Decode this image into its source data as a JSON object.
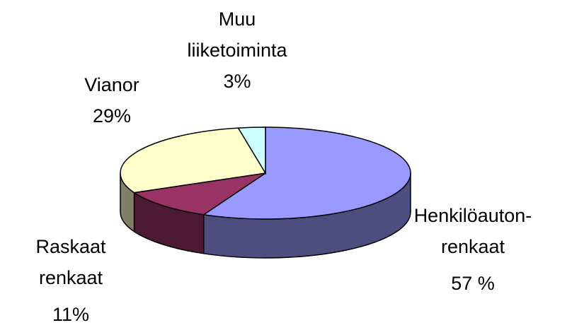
{
  "chart_data": {
    "type": "pie3d",
    "categories": [
      "Henkilöauton-renkaat",
      "Raskaat renkaat",
      "Vianor",
      "Muu liiketoiminta"
    ],
    "values": [
      57,
      11,
      29,
      3
    ],
    "value_labels": [
      "57 %",
      "11%",
      "29%",
      "3%"
    ],
    "colors": [
      "#9999ff",
      "#993366",
      "#ffffcc",
      "#ccffff"
    ],
    "side_colors": [
      "#4d4d80",
      "#4d1a33",
      "#808066",
      "#668080"
    ]
  }
}
